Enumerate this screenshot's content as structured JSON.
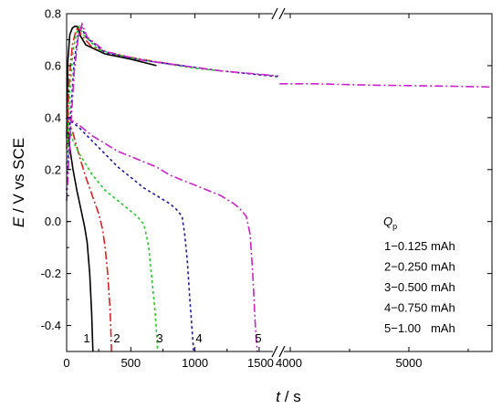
{
  "chart_data": {
    "type": "line",
    "title": "",
    "xlabel": {
      "var": "t",
      "rest": " / s"
    },
    "ylabel": {
      "var": "E",
      "rest": " / V vs SCE"
    },
    "x_broken_axis": {
      "segments": [
        {
          "xlim": [
            0,
            1650
          ],
          "ticks": [
            "0",
            "500",
            "1000",
            "1500"
          ],
          "tick_values": [
            0,
            500,
            1000,
            1500
          ]
        },
        {
          "xlim": [
            3900,
            5700
          ],
          "ticks": [
            "4000",
            "5000"
          ],
          "tick_values": [
            4000,
            5000
          ]
        }
      ],
      "break_at": 1650
    },
    "ylim": [
      -0.5,
      0.8
    ],
    "y_ticks": [
      "-0.4",
      "-0.2",
      "0.0",
      "0.2",
      "0.4",
      "0.6",
      "0.8"
    ],
    "y_tick_values": [
      -0.4,
      -0.2,
      0.0,
      0.2,
      0.4,
      0.6,
      0.8
    ],
    "legend": {
      "title_main": "Q",
      "title_sub": "p",
      "entries": [
        "1−0.125 mAh",
        "2−0.250 mAh",
        "3−0.500 mAh",
        "4−0.750 mAh",
        "5−1.00   mAh"
      ],
      "placement": "right"
    },
    "curve_labels": [
      "1",
      "2",
      "3",
      "4",
      "5"
    ],
    "series": [
      {
        "label": "1",
        "color": "#000000",
        "dash": "",
        "charge": [
          [
            0,
            0.32
          ],
          [
            10,
            0.62
          ],
          [
            25,
            0.72
          ],
          [
            45,
            0.745
          ],
          [
            65,
            0.752
          ],
          [
            85,
            0.75
          ],
          [
            100,
            0.72
          ],
          [
            150,
            0.68
          ],
          [
            300,
            0.645
          ],
          [
            500,
            0.625
          ],
          [
            700,
            0.6
          ]
        ],
        "discharge": [
          [
            0,
            0.4
          ],
          [
            20,
            0.3
          ],
          [
            50,
            0.2
          ],
          [
            80,
            0.12
          ],
          [
            110,
            0.05
          ],
          [
            140,
            -0.02
          ],
          [
            160,
            -0.08
          ],
          [
            180,
            -0.2
          ],
          [
            195,
            -0.35
          ],
          [
            205,
            -0.5
          ]
        ]
      },
      {
        "label": "2",
        "color": "#dd2020",
        "dash": "9,3,2,3",
        "charge": [
          [
            0,
            0.28
          ],
          [
            20,
            0.55
          ],
          [
            45,
            0.68
          ],
          [
            70,
            0.73
          ],
          [
            90,
            0.75
          ],
          [
            110,
            0.72
          ],
          [
            200,
            0.67
          ],
          [
            400,
            0.64
          ],
          [
            700,
            0.615
          ],
          [
            900,
            0.6
          ]
        ],
        "discharge": [
          [
            0,
            0.4
          ],
          [
            50,
            0.34
          ],
          [
            100,
            0.25
          ],
          [
            150,
            0.17
          ],
          [
            200,
            0.1
          ],
          [
            250,
            0.03
          ],
          [
            280,
            -0.03
          ],
          [
            300,
            -0.1
          ],
          [
            320,
            -0.2
          ],
          [
            340,
            -0.35
          ],
          [
            350,
            -0.5
          ]
        ]
      },
      {
        "label": "3",
        "color": "#22cc22",
        "dash": "3,3",
        "charge": [
          [
            0,
            0.22
          ],
          [
            25,
            0.5
          ],
          [
            50,
            0.66
          ],
          [
            80,
            0.73
          ],
          [
            100,
            0.75
          ],
          [
            130,
            0.72
          ],
          [
            250,
            0.66
          ],
          [
            500,
            0.63
          ],
          [
            800,
            0.605
          ],
          [
            1000,
            0.59
          ],
          [
            1200,
            0.58
          ]
        ],
        "discharge": [
          [
            0,
            0.4
          ],
          [
            50,
            0.31
          ],
          [
            100,
            0.26
          ],
          [
            200,
            0.18
          ],
          [
            300,
            0.12
          ],
          [
            400,
            0.08
          ],
          [
            500,
            0.04
          ],
          [
            550,
            0.02
          ],
          [
            600,
            -0.01
          ],
          [
            620,
            -0.05
          ],
          [
            640,
            -0.1
          ],
          [
            660,
            -0.2
          ],
          [
            690,
            -0.35
          ],
          [
            710,
            -0.5
          ]
        ]
      },
      {
        "label": "4",
        "color": "#1a1a9a",
        "dash": "3,3",
        "charge": [
          [
            0,
            0.12
          ],
          [
            30,
            0.4
          ],
          [
            60,
            0.62
          ],
          [
            90,
            0.72
          ],
          [
            115,
            0.75
          ],
          [
            150,
            0.71
          ],
          [
            300,
            0.65
          ],
          [
            600,
            0.62
          ],
          [
            900,
            0.6
          ],
          [
            1200,
            0.58
          ],
          [
            1500,
            0.565
          ],
          [
            1650,
            0.558
          ]
        ],
        "discharge": [
          [
            0,
            0.4
          ],
          [
            50,
            0.38
          ],
          [
            100,
            0.36
          ],
          [
            200,
            0.31
          ],
          [
            300,
            0.26
          ],
          [
            400,
            0.21
          ],
          [
            500,
            0.17
          ],
          [
            600,
            0.13
          ],
          [
            700,
            0.1
          ],
          [
            800,
            0.07
          ],
          [
            850,
            0.05
          ],
          [
            900,
            0.02
          ],
          [
            920,
            -0.05
          ],
          [
            940,
            -0.15
          ],
          [
            960,
            -0.3
          ],
          [
            975,
            -0.4
          ],
          [
            990,
            -0.5
          ]
        ]
      },
      {
        "label": "5",
        "color": "#cc22cc",
        "dash": "9,3,2,3",
        "charge": [
          [
            0,
            0.08
          ],
          [
            30,
            0.35
          ],
          [
            60,
            0.58
          ],
          [
            90,
            0.71
          ],
          [
            120,
            0.76
          ],
          [
            160,
            0.71
          ],
          [
            300,
            0.655
          ],
          [
            600,
            0.62
          ],
          [
            900,
            0.6
          ],
          [
            1200,
            0.58
          ],
          [
            1500,
            0.567
          ],
          [
            1650,
            0.56
          ]
        ],
        "charge_tail": [
          [
            3910,
            0.53
          ],
          [
            4200,
            0.53
          ],
          [
            4700,
            0.525
          ],
          [
            5200,
            0.522
          ],
          [
            5700,
            0.518
          ]
        ],
        "discharge": [
          [
            0,
            0.4
          ],
          [
            100,
            0.37
          ],
          [
            200,
            0.33
          ],
          [
            300,
            0.3
          ],
          [
            400,
            0.27
          ],
          [
            500,
            0.25
          ],
          [
            600,
            0.23
          ],
          [
            700,
            0.21
          ],
          [
            800,
            0.18
          ],
          [
            900,
            0.16
          ],
          [
            1000,
            0.14
          ],
          [
            1100,
            0.12
          ],
          [
            1200,
            0.1
          ],
          [
            1300,
            0.07
          ],
          [
            1350,
            0.05
          ],
          [
            1400,
            0.02
          ],
          [
            1430,
            -0.05
          ],
          [
            1450,
            -0.2
          ],
          [
            1470,
            -0.4
          ],
          [
            1485,
            -0.5
          ]
        ]
      }
    ]
  }
}
